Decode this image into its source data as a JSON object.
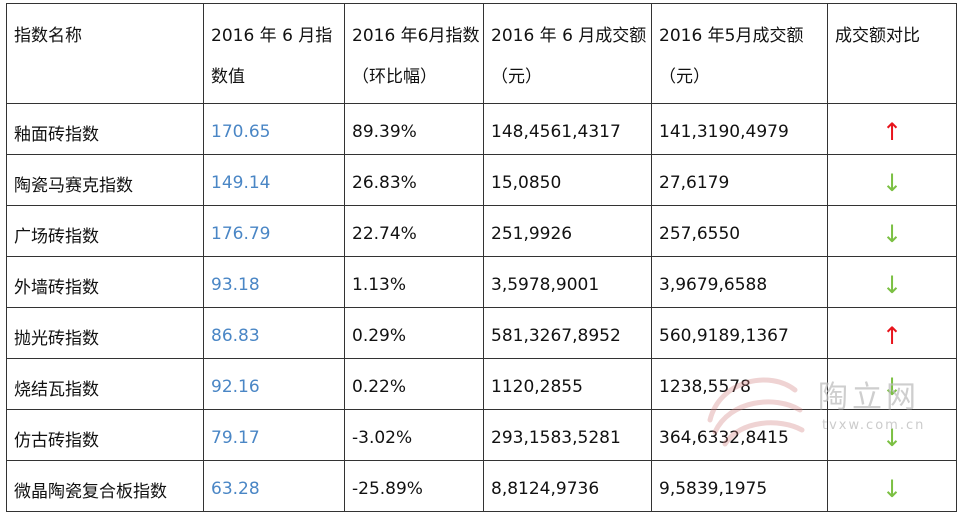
{
  "table": {
    "headers": [
      "指数名称",
      "2016 年 6 月指数值",
      "2016 年6月指数（环比幅）",
      "2016 年 6 月成交额（元）",
      "2016 年5月成交额（元）",
      "成交额对比"
    ],
    "rows": [
      {
        "name": "釉面砖指数",
        "index": "170.65",
        "change": "89.39%",
        "june": "148,4561,4317",
        "may": "141,3190,4979",
        "trend": "up",
        "arrow": "↑"
      },
      {
        "name": "陶瓷马赛克指数",
        "index": "149.14",
        "change": "26.83%",
        "june": "15,0850",
        "may": "27,6179",
        "trend": "down",
        "arrow": "↓"
      },
      {
        "name": "广场砖指数",
        "index": "176.79",
        "change": "22.74%",
        "june": "251,9926",
        "may": "257,6550",
        "trend": "down",
        "arrow": "↓"
      },
      {
        "name": "外墙砖指数",
        "index": "93.18",
        "change": "1.13%",
        "june": "3,5978,9001",
        "may": "3,9679,6588",
        "trend": "down",
        "arrow": "↓"
      },
      {
        "name": "抛光砖指数",
        "index": "86.83",
        "change": "0.29%",
        "june": "581,3267,8952",
        "may": "560,9189,1367",
        "trend": "up",
        "arrow": "↑"
      },
      {
        "name": "烧结瓦指数",
        "index": "92.16",
        "change": "0.22%",
        "june": "1120,2855",
        "may": "1238,5578",
        "trend": "down",
        "arrow": "↓"
      },
      {
        "name": "仿古砖指数",
        "index": "79.17",
        "change": "-3.02%",
        "june": "293,1583,5281",
        "may": "364,6332,8415",
        "trend": "down",
        "arrow": "↓"
      },
      {
        "name": "微晶陶瓷复合板指数",
        "index": "63.28",
        "change": "-25.89%",
        "june": "8,8124,9736",
        "may": "9,5839,1975",
        "trend": "down",
        "arrow": "↓"
      }
    ]
  },
  "watermark": {
    "text": "陶立网",
    "url": "tvxw.com.cn"
  },
  "colors": {
    "index_text": "#4a86c5",
    "up_arrow": "#e8141c",
    "down_arrow": "#7bc043",
    "watermark": "#d08080"
  }
}
